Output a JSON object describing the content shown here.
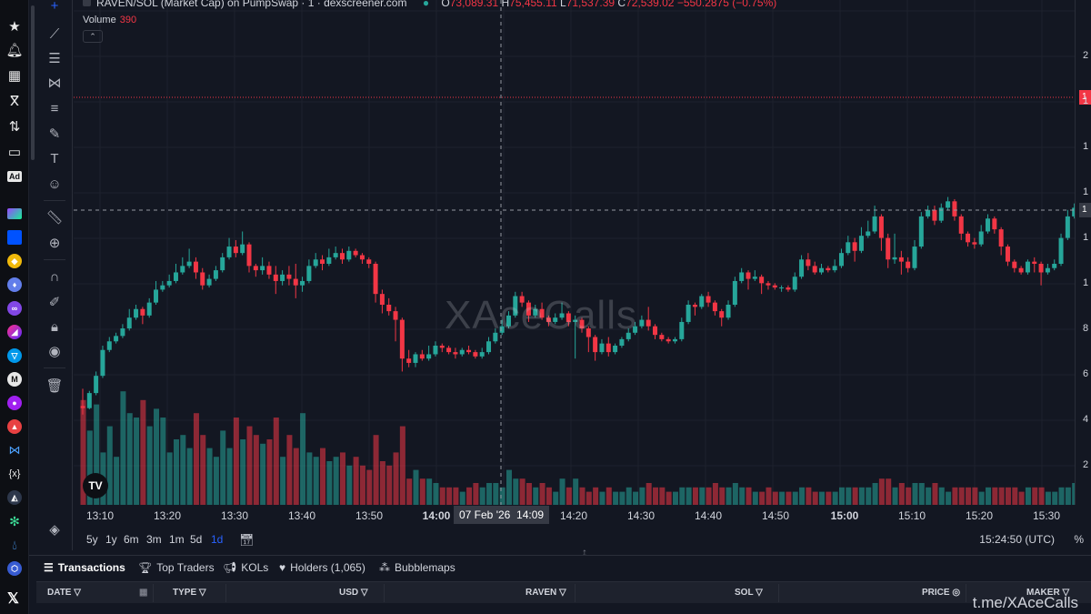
{
  "header": {
    "symbol": "RAVEN/SOL (Market Cap) on PumpSwap · 1 · dexscreener.com",
    "ohlc": {
      "o": "73,089.31",
      "h": "75,455.11",
      "l": "71,537.39",
      "c": "72,539.02",
      "change": "−550.2875 (−0.75%)"
    },
    "volume_label": "Volume",
    "volume_value": "390"
  },
  "watermark": "XAceCalls",
  "time_axis": {
    "labels": [
      "13:10",
      "13:20",
      "13:30",
      "13:40",
      "13:50",
      "14:00",
      "14:20",
      "14:30",
      "14:40",
      "14:50",
      "15:00",
      "15:10",
      "15:20",
      "15:30"
    ],
    "crosshair_date": "07 Feb '26",
    "crosshair_time": "14:09"
  },
  "price_scale": {
    "ticks": [
      "2",
      "1",
      "1",
      "1",
      "1",
      "1",
      "8",
      "6",
      "4",
      "2"
    ],
    "last_price_tag": "1",
    "crosshair_tag": "1"
  },
  "ranges": [
    "5y",
    "1y",
    "6m",
    "3m",
    "1m",
    "5d",
    "1d"
  ],
  "active_range": "1d",
  "timezone": "15:24:50 (UTC)",
  "percent_toggle": "%",
  "bottom_tabs": [
    {
      "label": "Transactions",
      "icon": "list-icon"
    },
    {
      "label": "Top Traders",
      "icon": "trophy-icon"
    },
    {
      "label": "KOLs",
      "icon": "megaphone-icon"
    },
    {
      "label": "Holders (1,065)",
      "icon": "heart-icon"
    },
    {
      "label": "Bubblemaps",
      "icon": "bubbles-icon"
    }
  ],
  "table_columns": [
    "DATE",
    "TYPE",
    "USD",
    "RAVEN",
    "SOL",
    "PRICE",
    "MAKER"
  ],
  "brand_text": "t.me/XAceCalls",
  "colors": {
    "up": "#26a69a",
    "down": "#f23645",
    "bg": "#131722",
    "grid": "#1e222d"
  },
  "chart_data": {
    "type": "candlestick",
    "title": "RAVEN/SOL (Market Cap) on PumpSwap · 1 · dexscreener.com",
    "x_start": "13:09",
    "x_interval_minutes": 1,
    "y_unit": "market cap (USD)",
    "candles": [
      [
        30000,
        29000,
        38000,
        26000,
        240
      ],
      [
        29000,
        36000,
        37000,
        28500,
        170
      ],
      [
        36000,
        44000,
        46000,
        35000,
        230
      ],
      [
        44000,
        56000,
        58000,
        43000,
        120
      ],
      [
        56000,
        60000,
        62000,
        55000,
        180
      ],
      [
        60000,
        62500,
        64000,
        59000,
        110
      ],
      [
        62500,
        66000,
        68000,
        61500,
        260
      ],
      [
        66000,
        71000,
        75000,
        65000,
        210
      ],
      [
        71000,
        75000,
        77000,
        70000,
        200
      ],
      [
        75000,
        72000,
        76000,
        68000,
        240
      ],
      [
        72000,
        78000,
        80000,
        71000,
        180
      ],
      [
        78000,
        84000,
        88000,
        77000,
        220
      ],
      [
        84000,
        86000,
        88000,
        83000,
        200
      ],
      [
        86000,
        88000,
        91000,
        85000,
        120
      ],
      [
        88000,
        92000,
        96000,
        87000,
        150
      ],
      [
        92000,
        95000,
        99000,
        91000,
        160
      ],
      [
        95000,
        97000,
        103000,
        94000,
        130
      ],
      [
        97000,
        92000,
        99000,
        89000,
        210
      ],
      [
        92000,
        86000,
        94000,
        84000,
        160
      ],
      [
        86000,
        89000,
        91000,
        85000,
        130
      ],
      [
        89000,
        93000,
        95000,
        88000,
        110
      ],
      [
        93000,
        99000,
        101000,
        92000,
        170
      ],
      [
        99000,
        104000,
        108000,
        98000,
        130
      ],
      [
        104000,
        101000,
        107000,
        99000,
        200
      ],
      [
        101000,
        105000,
        111000,
        100000,
        150
      ],
      [
        105000,
        95000,
        106000,
        92000,
        180
      ],
      [
        95000,
        93000,
        96000,
        90000,
        160
      ],
      [
        93000,
        95000,
        99000,
        91000,
        140
      ],
      [
        95000,
        91000,
        97000,
        89000,
        150
      ],
      [
        91000,
        88000,
        95000,
        82000,
        200
      ],
      [
        88000,
        91000,
        93000,
        86000,
        110
      ],
      [
        91000,
        89000,
        95000,
        86000,
        160
      ],
      [
        89000,
        86000,
        96000,
        80000,
        130
      ],
      [
        86000,
        88000,
        90000,
        83000,
        210
      ],
      [
        88000,
        95000,
        98000,
        87000,
        120
      ],
      [
        95000,
        98000,
        101000,
        94000,
        110
      ],
      [
        98000,
        96000,
        100000,
        93000,
        130
      ],
      [
        96000,
        99000,
        103000,
        95000,
        100
      ],
      [
        99000,
        101000,
        104000,
        98000,
        110
      ],
      [
        101000,
        98000,
        103000,
        96000,
        120
      ],
      [
        98000,
        102000,
        104000,
        97000,
        90
      ],
      [
        102000,
        100000,
        103000,
        99000,
        110
      ],
      [
        100000,
        98000,
        101000,
        96000,
        90
      ],
      [
        98000,
        96000,
        99000,
        94000,
        80
      ],
      [
        96000,
        82000,
        97000,
        78000,
        160
      ],
      [
        82000,
        77000,
        84000,
        73000,
        100
      ],
      [
        77000,
        74000,
        80000,
        72000,
        90
      ],
      [
        74000,
        70000,
        76000,
        60000,
        120
      ],
      [
        70000,
        52000,
        71000,
        46000,
        180
      ],
      [
        52000,
        50000,
        56000,
        48000,
        60
      ],
      [
        50000,
        54000,
        55000,
        48000,
        80
      ],
      [
        54000,
        52000,
        56000,
        51000,
        60
      ],
      [
        52000,
        54000,
        58000,
        51000,
        60
      ],
      [
        54000,
        58000,
        60000,
        53000,
        50
      ],
      [
        58000,
        57000,
        59000,
        55000,
        40
      ],
      [
        57000,
        55000,
        58000,
        54000,
        40
      ],
      [
        55000,
        54000,
        57000,
        52000,
        40
      ],
      [
        54000,
        56000,
        57000,
        53000,
        30
      ],
      [
        56000,
        55000,
        58000,
        54000,
        40
      ],
      [
        55000,
        53000,
        56000,
        52000,
        50
      ],
      [
        53000,
        55000,
        57000,
        52000,
        40
      ],
      [
        55000,
        60000,
        62000,
        54000,
        50
      ],
      [
        60000,
        64000,
        66000,
        59000,
        50
      ],
      [
        64000,
        67000,
        70000,
        63000,
        40
      ],
      [
        67000,
        72000,
        74000,
        66000,
        80
      ],
      [
        72000,
        81000,
        83000,
        71000,
        60
      ],
      [
        81000,
        78000,
        83000,
        76000,
        60
      ],
      [
        78000,
        72000,
        79000,
        69000,
        50
      ],
      [
        72000,
        75000,
        77000,
        71000,
        40
      ],
      [
        75000,
        71000,
        78000,
        70000,
        50
      ],
      [
        71000,
        69000,
        72000,
        67000,
        40
      ],
      [
        69000,
        71000,
        73000,
        68000,
        30
      ],
      [
        71000,
        73000,
        78000,
        70000,
        60
      ],
      [
        73000,
        69000,
        74000,
        67000,
        40
      ],
      [
        69000,
        70000,
        72000,
        52000,
        60
      ],
      [
        70000,
        66000,
        71000,
        64000,
        40
      ],
      [
        66000,
        62000,
        67000,
        55000,
        30
      ],
      [
        62000,
        55000,
        63000,
        51000,
        40
      ],
      [
        55000,
        59000,
        61000,
        54000,
        30
      ],
      [
        59000,
        55000,
        62000,
        53000,
        40
      ],
      [
        55000,
        58000,
        59000,
        54000,
        30
      ],
      [
        58000,
        61000,
        62000,
        57000,
        30
      ],
      [
        61000,
        64000,
        66000,
        60000,
        40
      ],
      [
        64000,
        67000,
        69000,
        63000,
        30
      ],
      [
        67000,
        70000,
        72000,
        66000,
        40
      ],
      [
        70000,
        67000,
        76000,
        65000,
        50
      ],
      [
        67000,
        63000,
        68000,
        61000,
        40
      ],
      [
        63000,
        61000,
        64000,
        60000,
        40
      ],
      [
        61000,
        60000,
        62000,
        59000,
        30
      ],
      [
        60000,
        61000,
        62000,
        59000,
        30
      ],
      [
        61000,
        69000,
        71000,
        60000,
        40
      ],
      [
        69000,
        77000,
        79000,
        68000,
        40
      ],
      [
        77000,
        76000,
        78000,
        72000,
        40
      ],
      [
        76000,
        81000,
        82000,
        75000,
        40
      ],
      [
        81000,
        78000,
        83000,
        76000,
        40
      ],
      [
        78000,
        74000,
        79000,
        72000,
        50
      ],
      [
        74000,
        71000,
        75000,
        67000,
        40
      ],
      [
        71000,
        77000,
        79000,
        70000,
        40
      ],
      [
        77000,
        88000,
        90000,
        76000,
        50
      ],
      [
        88000,
        92000,
        94000,
        87000,
        40
      ],
      [
        92000,
        89000,
        93000,
        84000,
        40
      ],
      [
        89000,
        90000,
        93000,
        88000,
        30
      ],
      [
        90000,
        87000,
        91000,
        82000,
        30
      ],
      [
        87000,
        86000,
        88000,
        84000,
        40
      ],
      [
        86000,
        85000,
        87000,
        84000,
        30
      ],
      [
        85000,
        85000,
        86000,
        83000,
        30
      ],
      [
        85000,
        84000,
        86000,
        83000,
        30
      ],
      [
        84000,
        90000,
        92000,
        83000,
        30
      ],
      [
        90000,
        98000,
        100000,
        89000,
        40
      ],
      [
        98000,
        95000,
        101000,
        93000,
        40
      ],
      [
        95000,
        92000,
        97000,
        91000,
        30
      ],
      [
        92000,
        94000,
        96000,
        91000,
        30
      ],
      [
        94000,
        93000,
        95000,
        92000,
        30
      ],
      [
        93000,
        95000,
        98000,
        92000,
        30
      ],
      [
        95000,
        101000,
        103000,
        94000,
        40
      ],
      [
        101000,
        106000,
        109000,
        100000,
        40
      ],
      [
        106000,
        102000,
        108000,
        97000,
        40
      ],
      [
        102000,
        109000,
        113000,
        101000,
        40
      ],
      [
        109000,
        111000,
        116000,
        108000,
        40
      ],
      [
        111000,
        118000,
        123000,
        110000,
        50
      ],
      [
        118000,
        108000,
        119000,
        102000,
        60
      ],
      [
        108000,
        98000,
        110000,
        94000,
        60
      ],
      [
        98000,
        99000,
        110000,
        96000,
        40
      ],
      [
        99000,
        97000,
        102000,
        91000,
        50
      ],
      [
        97000,
        94000,
        99000,
        92000,
        40
      ],
      [
        94000,
        104000,
        107000,
        93000,
        50
      ],
      [
        104000,
        118000,
        120000,
        103000,
        50
      ],
      [
        118000,
        121000,
        123000,
        117000,
        40
      ],
      [
        121000,
        116000,
        123000,
        114000,
        50
      ],
      [
        116000,
        122000,
        124000,
        115000,
        40
      ],
      [
        122000,
        125000,
        127000,
        121000,
        30
      ],
      [
        125000,
        118000,
        126000,
        116000,
        40
      ],
      [
        118000,
        110000,
        119000,
        107000,
        40
      ],
      [
        110000,
        106000,
        111000,
        104000,
        40
      ],
      [
        106000,
        105000,
        108000,
        103000,
        40
      ],
      [
        105000,
        111000,
        114000,
        104000,
        30
      ],
      [
        111000,
        117000,
        119000,
        110000,
        40
      ],
      [
        117000,
        112000,
        118000,
        110000,
        40
      ],
      [
        112000,
        104000,
        113000,
        100000,
        40
      ],
      [
        104000,
        97000,
        105000,
        95000,
        40
      ],
      [
        97000,
        94000,
        98000,
        92000,
        40
      ],
      [
        94000,
        92000,
        95000,
        91000,
        30
      ],
      [
        92000,
        97000,
        98000,
        91000,
        40
      ],
      [
        97000,
        96000,
        99000,
        92000,
        40
      ],
      [
        96000,
        92000,
        97000,
        86000,
        40
      ],
      [
        92000,
        94000,
        96000,
        91000,
        30
      ],
      [
        94000,
        96000,
        98000,
        93000,
        30
      ],
      [
        96000,
        108000,
        110000,
        95000,
        40
      ],
      [
        108000,
        118000,
        121000,
        107000,
        40
      ],
      [
        118000,
        122000,
        124000,
        117000,
        50
      ],
      [
        122000,
        140000,
        143000,
        121000,
        50
      ],
      [
        140000,
        145000,
        150000,
        139000,
        80
      ],
      [
        145000,
        143000,
        151000,
        140000,
        60
      ],
      [
        143000,
        152000,
        155000,
        142000,
        60
      ],
      [
        152000,
        163000,
        166000,
        151000,
        70
      ],
      [
        163000,
        170000,
        175000,
        162000,
        80
      ],
      [
        170000,
        175000,
        183000,
        169000,
        110
      ],
      [
        175000,
        190000,
        206000,
        174000,
        120
      ],
      [
        190000,
        184000,
        191000,
        182000,
        30
      ]
    ]
  }
}
